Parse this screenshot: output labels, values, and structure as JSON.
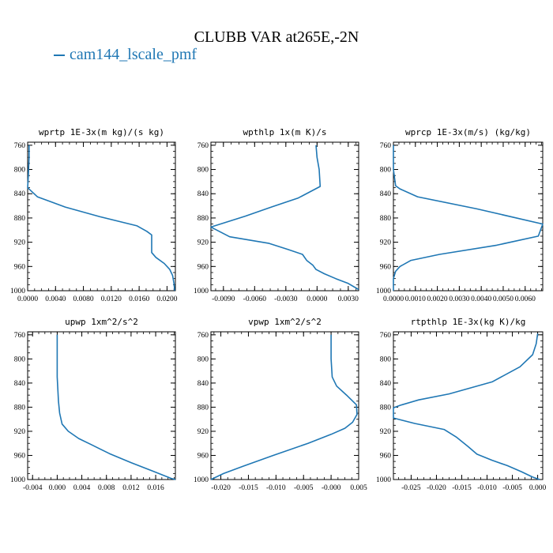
{
  "title": "CLUBB VAR at265E,-2N",
  "legend": {
    "label": "cam144_lscale_pmf",
    "color": "#1f77b4"
  },
  "chart_data": [
    {
      "type": "line",
      "title": "wprtp  1E-3x(m kg)/(s kg)",
      "xlim": [
        0.0,
        0.0212
      ],
      "xticks": [
        "0.0000",
        "0.0040",
        "0.0080",
        "0.0120",
        "0.0160",
        "0.0200"
      ],
      "xtick_values": [
        0.0,
        0.004,
        0.008,
        0.012,
        0.016,
        0.02
      ],
      "ylim": [
        1000,
        755
      ],
      "yticks": [
        760,
        800,
        840,
        880,
        920,
        960,
        1000
      ],
      "series": [
        {
          "points": [
            [
              0.0002,
              760
            ],
            [
              0.0002,
              780
            ],
            [
              0.0001,
              810
            ],
            [
              0.0,
              830
            ],
            [
              0.0014,
              845
            ],
            [
              0.0054,
              862
            ],
            [
              0.0104,
              878
            ],
            [
              0.0157,
              893
            ],
            [
              0.0171,
              902
            ],
            [
              0.0178,
              908
            ],
            [
              0.0178,
              920
            ],
            [
              0.0178,
              937
            ],
            [
              0.0184,
              945
            ],
            [
              0.0196,
              955
            ],
            [
              0.0204,
              965
            ],
            [
              0.0208,
              975
            ],
            [
              0.021,
              988
            ],
            [
              0.0211,
              1000
            ]
          ]
        }
      ]
    },
    {
      "type": "line",
      "title": "wpthlp  1x(m K)/s",
      "xlim": [
        -0.0102,
        0.004
      ],
      "xticks": [
        "-0.0090",
        "-0.0060",
        "-0.0030",
        "0.0000",
        "0.0030"
      ],
      "xtick_values": [
        -0.009,
        -0.006,
        -0.003,
        0.0,
        0.003
      ],
      "ylim": [
        1000,
        755
      ],
      "yticks": [
        760,
        800,
        840,
        880,
        920,
        960,
        1000
      ],
      "series": [
        {
          "points": [
            [
              -0.0001,
              760
            ],
            [
              0.0,
              780
            ],
            [
              0.0002,
              800
            ],
            [
              0.0003,
              828
            ],
            [
              -0.0018,
              847
            ],
            [
              -0.0044,
              862
            ],
            [
              -0.0069,
              877
            ],
            [
              -0.0102,
              895
            ],
            [
              -0.0084,
              911
            ],
            [
              -0.0046,
              922
            ],
            [
              -0.0028,
              932
            ],
            [
              -0.0014,
              940
            ],
            [
              -0.001,
              950
            ],
            [
              -0.0004,
              958
            ],
            [
              -0.0001,
              965
            ],
            [
              0.0007,
              972
            ],
            [
              0.0018,
              980
            ],
            [
              0.003,
              988
            ],
            [
              0.004,
              998
            ]
          ]
        }
      ]
    },
    {
      "type": "line",
      "title": "wprcp  1E-3x(m/s) (kg/kg)",
      "xlim": [
        0.0,
        0.0068
      ],
      "xticks": [
        "0.0000",
        "0.0010",
        "0.0020",
        "0.0030",
        "0.0040",
        "0.0050",
        "0.0060"
      ],
      "xtick_values": [
        0.0,
        0.001,
        0.002,
        0.003,
        0.004,
        0.005,
        0.006
      ],
      "ylim": [
        1000,
        755
      ],
      "yticks": [
        760,
        800,
        840,
        880,
        920,
        960,
        1000
      ],
      "series": [
        {
          "points": [
            [
              0.0,
              760
            ],
            [
              0.0,
              800
            ],
            [
              0.0001,
              827
            ],
            [
              0.0003,
              832
            ],
            [
              0.0011,
              845
            ],
            [
              0.0038,
              865
            ],
            [
              0.0068,
              890
            ],
            [
              0.0066,
              910
            ],
            [
              0.0047,
              925
            ],
            [
              0.0021,
              940
            ],
            [
              0.0008,
              950
            ],
            [
              0.0003,
              960
            ],
            [
              0.0001,
              968
            ],
            [
              0.0,
              980
            ],
            [
              0.0,
              1000
            ]
          ]
        }
      ]
    },
    {
      "type": "line",
      "title": "upwp  1xm^2/s^2",
      "xlim": [
        -0.0048,
        0.0192
      ],
      "xticks": [
        "-0.004",
        "0.000",
        "0.004",
        "0.008",
        "0.012",
        "0.016"
      ],
      "xtick_values": [
        -0.004,
        0.0,
        0.004,
        0.008,
        0.012,
        0.016
      ],
      "ylim": [
        1000,
        755
      ],
      "yticks": [
        760,
        800,
        840,
        880,
        920,
        960,
        1000
      ],
      "series": [
        {
          "points": [
            [
              0.0,
              760
            ],
            [
              0.0,
              800
            ],
            [
              0.0,
              830
            ],
            [
              0.0002,
              870
            ],
            [
              0.0004,
              890
            ],
            [
              0.0008,
              908
            ],
            [
              0.0018,
              920
            ],
            [
              0.0035,
              932
            ],
            [
              0.0055,
              942
            ],
            [
              0.0085,
              957
            ],
            [
              0.012,
              972
            ],
            [
              0.0155,
              986
            ],
            [
              0.0185,
              998
            ],
            [
              0.0192,
              1000
            ]
          ]
        }
      ]
    },
    {
      "type": "line",
      "title": "vpwp  1xm^2/s^2",
      "xlim": [
        -0.0218,
        0.005
      ],
      "xticks": [
        "-0.020",
        "-0.015",
        "-0.010",
        "-0.005",
        "-0.000",
        "0.005"
      ],
      "xtick_values": [
        -0.02,
        -0.015,
        -0.01,
        -0.005,
        0.0,
        0.005
      ],
      "ylim": [
        1000,
        755
      ],
      "yticks": [
        760,
        800,
        840,
        880,
        920,
        960,
        1000
      ],
      "series": [
        {
          "points": [
            [
              0.0,
              760
            ],
            [
              0.0,
              800
            ],
            [
              0.0002,
              830
            ],
            [
              0.001,
              845
            ],
            [
              0.0028,
              860
            ],
            [
              0.0046,
              876
            ],
            [
              0.0047,
              892
            ],
            [
              0.0039,
              905
            ],
            [
              0.0025,
              915
            ],
            [
              0.0,
              925
            ],
            [
              -0.0042,
              940
            ],
            [
              -0.0105,
              960
            ],
            [
              -0.016,
              978
            ],
            [
              -0.0195,
              990
            ],
            [
              -0.0218,
              1000
            ]
          ]
        }
      ]
    },
    {
      "type": "line",
      "title": "rtpthlp  1E-3x(kg K)/kg",
      "xlim": [
        -0.0285,
        0.001
      ],
      "xticks": [
        "-0.025",
        "-0.020",
        "-0.015",
        "-0.010",
        "-0.005",
        "0.000"
      ],
      "xtick_values": [
        -0.025,
        -0.02,
        -0.015,
        -0.01,
        -0.005,
        0.0
      ],
      "ylim": [
        1000,
        755
      ],
      "yticks": [
        760,
        800,
        840,
        880,
        920,
        960,
        1000
      ],
      "series": [
        {
          "points": [
            [
              0.0,
              758
            ],
            [
              -0.0003,
              775
            ],
            [
              -0.001,
              793
            ],
            [
              -0.0035,
              813
            ],
            [
              -0.009,
              838
            ],
            [
              -0.0175,
              858
            ],
            [
              -0.0235,
              868
            ],
            [
              -0.0272,
              877
            ],
            [
              -0.0285,
              881
            ],
            [
              -0.0285,
              898
            ],
            [
              -0.0243,
              907
            ],
            [
              -0.0185,
              917
            ],
            [
              -0.016,
              930
            ],
            [
              -0.0138,
              945
            ],
            [
              -0.012,
              958
            ],
            [
              -0.009,
              968
            ],
            [
              -0.006,
              977
            ],
            [
              -0.0032,
              987
            ],
            [
              -0.001,
              996
            ],
            [
              0.0004,
              1000
            ]
          ]
        }
      ]
    }
  ]
}
